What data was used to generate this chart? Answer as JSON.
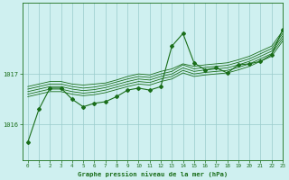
{
  "title": "Graphe pression niveau de la mer (hPa)",
  "bg_color": "#cff0f0",
  "grid_color": "#99cccc",
  "line_color": "#1a6e1a",
  "marker_color": "#1a6e1a",
  "text_color": "#1a6e1a",
  "xlim": [
    -0.5,
    23
  ],
  "ylim": [
    1015.3,
    1018.4
  ],
  "yticks": [
    1016,
    1017
  ],
  "xticks": [
    0,
    1,
    2,
    3,
    4,
    5,
    6,
    7,
    8,
    9,
    10,
    11,
    12,
    13,
    14,
    15,
    16,
    17,
    18,
    19,
    20,
    21,
    22,
    23
  ],
  "series": [
    [
      1016.75,
      1016.8,
      1016.85,
      1016.85,
      1016.8,
      1016.78,
      1016.8,
      1016.82,
      1016.88,
      1016.95,
      1017.0,
      1016.98,
      1017.05,
      1017.1,
      1017.2,
      1017.15,
      1017.18,
      1017.2,
      1017.22,
      1017.28,
      1017.35,
      1017.45,
      1017.55,
      1017.85
    ],
    [
      1016.7,
      1016.75,
      1016.8,
      1016.8,
      1016.75,
      1016.72,
      1016.74,
      1016.78,
      1016.84,
      1016.9,
      1016.95,
      1016.93,
      1017.0,
      1017.05,
      1017.18,
      1017.1,
      1017.13,
      1017.15,
      1017.17,
      1017.23,
      1017.3,
      1017.4,
      1017.5,
      1017.8
    ],
    [
      1016.65,
      1016.7,
      1016.75,
      1016.75,
      1016.7,
      1016.67,
      1016.69,
      1016.73,
      1016.79,
      1016.85,
      1016.9,
      1016.88,
      1016.95,
      1017.0,
      1017.12,
      1017.05,
      1017.08,
      1017.1,
      1017.12,
      1017.18,
      1017.25,
      1017.35,
      1017.45,
      1017.75
    ],
    [
      1016.6,
      1016.65,
      1016.7,
      1016.7,
      1016.65,
      1016.62,
      1016.64,
      1016.68,
      1016.74,
      1016.8,
      1016.85,
      1016.83,
      1016.9,
      1016.95,
      1017.07,
      1017.0,
      1017.03,
      1017.05,
      1017.07,
      1017.13,
      1017.2,
      1017.3,
      1017.4,
      1017.7
    ],
    [
      1016.55,
      1016.6,
      1016.65,
      1016.65,
      1016.6,
      1016.57,
      1016.59,
      1016.63,
      1016.69,
      1016.75,
      1016.8,
      1016.78,
      1016.85,
      1016.9,
      1017.02,
      1016.95,
      1016.98,
      1017.0,
      1017.02,
      1017.08,
      1017.15,
      1017.25,
      1017.35,
      1017.65
    ]
  ],
  "marker_series": [
    1015.65,
    1016.3,
    1016.72,
    1016.72,
    1016.5,
    1016.35,
    1016.42,
    1016.45,
    1016.55,
    1016.68,
    1016.72,
    1016.68,
    1016.75,
    1017.55,
    1017.8,
    1017.22,
    1017.08,
    1017.12,
    1017.02,
    1017.18,
    1017.2,
    1017.25,
    1017.38,
    1017.88
  ]
}
